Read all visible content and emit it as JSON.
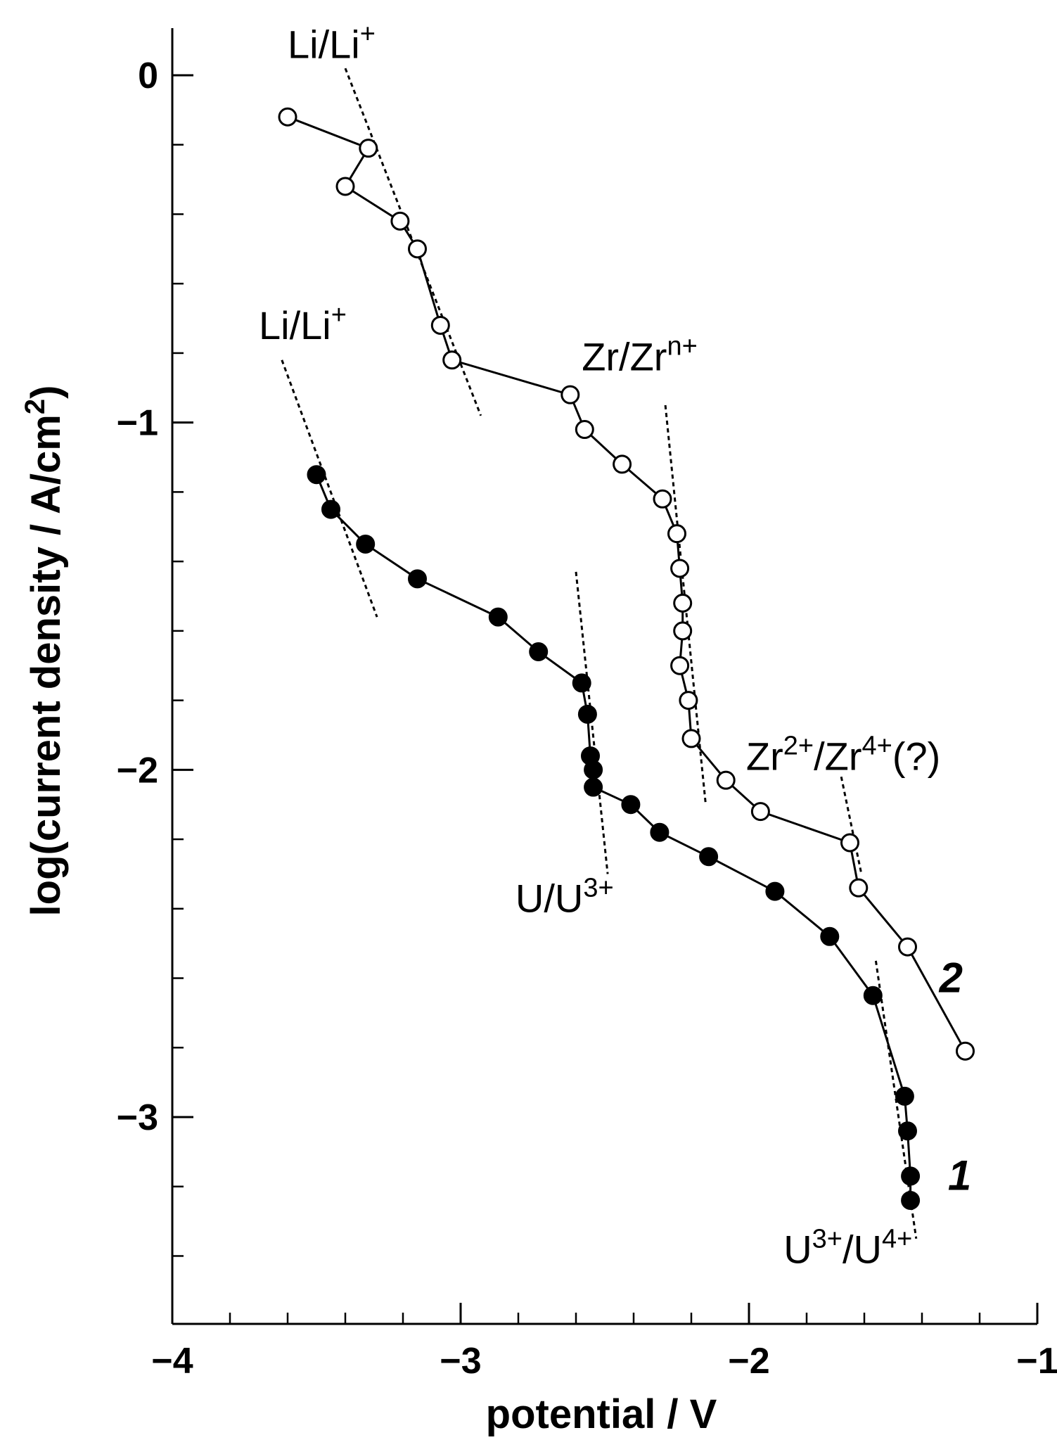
{
  "chart_data": {
    "type": "scatter",
    "xlabel": "potential / V",
    "ylabel": "log(current density / A/cm²)",
    "ylabel_parts": {
      "main": "log(current density / A/cm",
      "sup": "2",
      "end": ")"
    },
    "xlim": [
      -4,
      -1
    ],
    "ylim": [
      -3.5,
      0.15
    ],
    "x_ticks": [
      -4,
      -3,
      -2,
      -1
    ],
    "x_tick_labels": [
      "−4",
      "−3",
      "−2",
      "−1"
    ],
    "y_ticks": [
      0,
      -1,
      -2,
      -3
    ],
    "y_tick_labels": [
      "0",
      "−1",
      "−2",
      "−3"
    ],
    "grid": false,
    "series": [
      {
        "name": "1",
        "marker": "filled-circle",
        "points": [
          [
            -3.5,
            -1.15
          ],
          [
            -3.45,
            -1.25
          ],
          [
            -3.33,
            -1.35
          ],
          [
            -3.15,
            -1.45
          ],
          [
            -2.87,
            -1.56
          ],
          [
            -2.73,
            -1.66
          ],
          [
            -2.58,
            -1.75
          ],
          [
            -2.56,
            -1.84
          ],
          [
            -2.55,
            -1.96
          ],
          [
            -2.54,
            -2.0
          ],
          [
            -2.54,
            -2.05
          ],
          [
            -2.41,
            -2.1
          ],
          [
            -2.31,
            -2.18
          ],
          [
            -2.14,
            -2.25
          ],
          [
            -1.91,
            -2.35
          ],
          [
            -1.72,
            -2.48
          ],
          [
            -1.57,
            -2.65
          ],
          [
            -1.46,
            -2.94
          ],
          [
            -1.45,
            -3.04
          ],
          [
            -1.44,
            -3.17
          ],
          [
            -1.44,
            -3.24
          ]
        ]
      },
      {
        "name": "2",
        "marker": "open-circle",
        "points": [
          [
            -3.6,
            -0.12
          ],
          [
            -3.32,
            -0.21
          ],
          [
            -3.4,
            -0.32
          ],
          [
            -3.21,
            -0.42
          ],
          [
            -3.15,
            -0.5
          ],
          [
            -3.07,
            -0.72
          ],
          [
            -3.03,
            -0.82
          ],
          [
            -2.62,
            -0.92
          ],
          [
            -2.57,
            -1.02
          ],
          [
            -2.44,
            -1.12
          ],
          [
            -2.3,
            -1.22
          ],
          [
            -2.25,
            -1.32
          ],
          [
            -2.24,
            -1.42
          ],
          [
            -2.23,
            -1.52
          ],
          [
            -2.23,
            -1.6
          ],
          [
            -2.24,
            -1.7
          ],
          [
            -2.21,
            -1.8
          ],
          [
            -2.2,
            -1.91
          ],
          [
            -2.08,
            -2.03
          ],
          [
            -1.96,
            -2.12
          ],
          [
            -1.65,
            -2.21
          ],
          [
            -1.62,
            -2.34
          ],
          [
            -1.45,
            -2.51
          ],
          [
            -1.25,
            -2.81
          ]
        ]
      }
    ],
    "guides": [
      {
        "from": [
          -3.4,
          0.02
        ],
        "to": [
          -2.93,
          -0.98
        ]
      },
      {
        "from": [
          -3.62,
          -0.82
        ],
        "to": [
          -3.29,
          -1.56
        ]
      },
      {
        "from": [
          -2.6,
          -1.43
        ],
        "to": [
          -2.49,
          -2.3
        ]
      },
      {
        "from": [
          -2.29,
          -0.95
        ],
        "to": [
          -2.15,
          -2.1
        ]
      },
      {
        "from": [
          -1.68,
          -2.02
        ],
        "to": [
          -1.61,
          -2.3
        ]
      },
      {
        "from": [
          -1.56,
          -2.55
        ],
        "to": [
          -1.42,
          -3.35
        ]
      }
    ],
    "annotations": [
      {
        "main": "Li/Li",
        "sup": "+",
        "x": -3.6,
        "y": 0.05
      },
      {
        "main": "Li/Li",
        "sup": "+",
        "x": -3.7,
        "y": -0.76
      },
      {
        "main": "Zr/Zr",
        "sup": "n+",
        "x": -2.58,
        "y": -0.85
      },
      {
        "main": "U/U",
        "sup": "3+",
        "x": -2.81,
        "y": -2.41
      },
      {
        "main": "Zr",
        "sup": "2+",
        "main2": "/Zr",
        "sup2": "4+",
        "end": "(?)",
        "x": -2.01,
        "y": -2.0
      },
      {
        "main": "U",
        "sup": "3+",
        "main2": "/U",
        "sup2": "4+",
        "x": -1.88,
        "y": -3.42
      }
    ],
    "series_labels": [
      {
        "text": "2",
        "x": -1.34,
        "y": -2.64
      },
      {
        "text": "1",
        "x": -1.31,
        "y": -3.21
      }
    ]
  }
}
